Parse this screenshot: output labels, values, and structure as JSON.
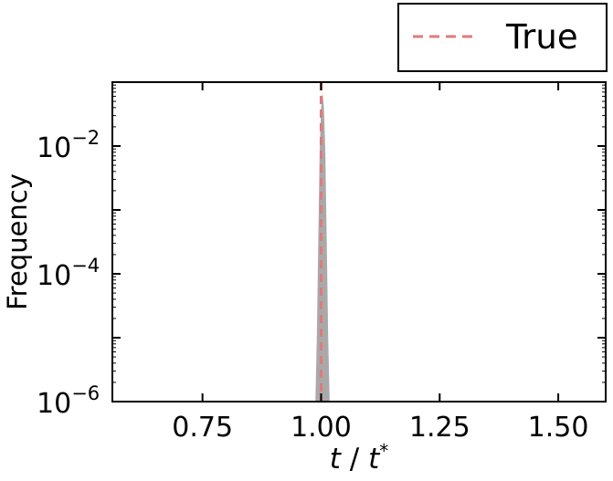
{
  "chart_data": {
    "type": "area",
    "title": "",
    "xlabel": "t / t*",
    "xlabel_parts": {
      "var": "t",
      "sep": " / ",
      "ref": "t",
      "sup": "*"
    },
    "ylabel": "Frequency",
    "x_scale": "linear",
    "y_scale": "log",
    "xlim": [
      0.56,
      1.6
    ],
    "ylim_log10": [
      -6,
      -1
    ],
    "x_ticks": [
      0.75,
      1.0,
      1.25,
      1.5
    ],
    "x_tick_labels": [
      "0.75",
      "1.00",
      "1.25",
      "1.50"
    ],
    "y_ticks": [
      {
        "base": "10",
        "exp": "−2",
        "log10": -2
      },
      {
        "base": "10",
        "exp": "−4",
        "log10": -4
      },
      {
        "base": "10",
        "exp": "−6",
        "log10": -6
      }
    ],
    "grid": false,
    "legend": {
      "position": "top-right",
      "entries": [
        {
          "label": "True",
          "style": "dashed",
          "color": "#e07b7b"
        }
      ]
    },
    "histogram": {
      "color": "#a9a9a9",
      "bins_x": [
        0.988,
        0.991,
        0.994,
        0.997,
        1.0,
        1.003,
        1.006,
        1.009,
        1.012,
        1.015,
        1.018,
        1.021
      ],
      "frequency": [
        1e-06,
        1e-05,
        0.0003,
        0.008,
        0.04,
        0.07,
        0.04,
        0.008,
        0.0003,
        1e-05,
        1e-06,
        1e-06
      ]
    },
    "reference_line": {
      "label": "True",
      "x": 1.0,
      "color": "#e07b7b",
      "style": "dashed"
    },
    "colors": {
      "axis": "#000000",
      "histogram": "#a9a9a9",
      "true_line": "#e07b7b"
    }
  }
}
